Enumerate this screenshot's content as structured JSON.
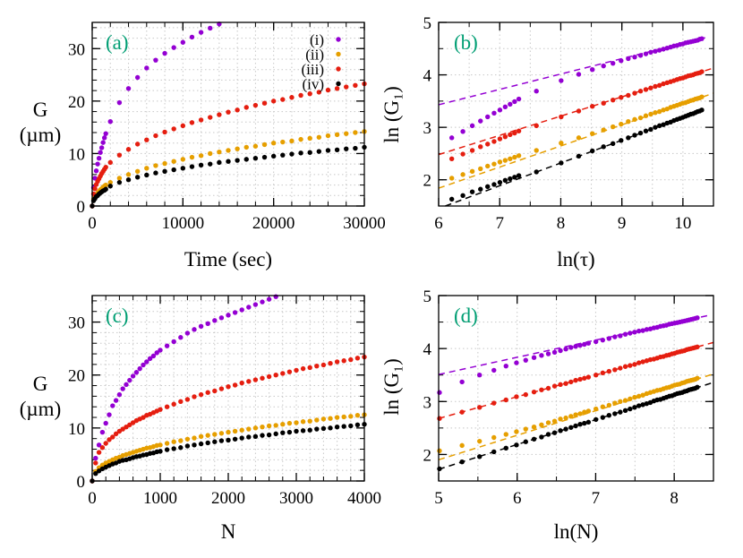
{
  "chart_data": [
    {
      "type": "scatter",
      "panel_label": "(a)",
      "xlabel": "Time (sec)",
      "ylabel": "G (µm)",
      "xlim": [
        0,
        30000
      ],
      "ylim": [
        0,
        35
      ],
      "xticks": [
        "0",
        "10000",
        "20000",
        "30000"
      ],
      "yticks": [
        "0",
        "10",
        "20",
        "30"
      ],
      "grid": true,
      "legend": {
        "position": "top-right"
      },
      "x": [
        0,
        150,
        300,
        450,
        600,
        750,
        900,
        1050,
        1200,
        1350,
        1500,
        2000,
        3000,
        4000,
        5000,
        6000,
        7000,
        8000,
        9000,
        10000,
        11000,
        12000,
        13000,
        14000,
        15000,
        16000,
        17000,
        18000,
        19000,
        20000,
        21000,
        22000,
        23000,
        24000,
        25000,
        26000,
        27000,
        28000,
        29000,
        30000
      ],
      "series": [
        {
          "name": "(i)",
          "color": "#9400d3",
          "values": [
            0,
            3.5,
            5.3,
            6.7,
            8.0,
            9.1,
            10.2,
            11.1,
            12.1,
            13.0,
            13.8,
            16.1,
            19.7,
            22.4,
            24.5,
            26.3,
            27.8,
            29.1,
            30.2,
            31.2,
            32.2,
            33.1,
            33.9,
            34.7
          ]
        },
        {
          "name": "(ii)",
          "color": "#e69f00",
          "values": [
            0,
            1.3,
            1.8,
            2.2,
            2.5,
            2.8,
            3.1,
            3.3,
            3.6,
            3.8,
            4.0,
            4.5,
            5.3,
            6.0,
            6.6,
            7.2,
            7.7,
            8.1,
            8.5,
            8.9,
            9.3,
            9.6,
            10.0,
            10.3,
            10.6,
            10.9,
            11.2,
            11.4,
            11.7,
            12.0,
            12.2,
            12.4,
            12.7,
            12.9,
            13.1,
            13.4,
            13.6,
            13.8,
            14.0,
            14.2
          ]
        },
        {
          "name": "(iii)",
          "color": "#e51e10",
          "values": [
            0,
            2.3,
            3.3,
            4.1,
            4.7,
            5.2,
            5.7,
            6.2,
            6.6,
            7.0,
            7.4,
            8.3,
            9.7,
            10.8,
            11.8,
            12.6,
            13.4,
            14.1,
            14.7,
            15.3,
            15.9,
            16.4,
            16.9,
            17.4,
            17.9,
            18.3,
            18.8,
            19.2,
            19.6,
            20.0,
            20.3,
            20.7,
            21.1,
            21.4,
            21.7,
            22.1,
            22.4,
            22.7,
            23.0,
            23.3
          ]
        },
        {
          "name": "(iv)",
          "color": "#000000",
          "values": [
            0,
            1.0,
            1.4,
            1.8,
            2.0,
            2.3,
            2.5,
            2.7,
            2.9,
            3.0,
            3.2,
            3.8,
            4.5,
            5.0,
            5.5,
            5.9,
            6.3,
            6.6,
            6.9,
            7.2,
            7.5,
            7.8,
            8.0,
            8.3,
            8.5,
            8.7,
            8.9,
            9.1,
            9.3,
            9.5,
            9.7,
            9.9,
            10.1,
            10.2,
            10.4,
            10.6,
            10.7,
            10.9,
            11.0,
            11.2
          ]
        }
      ]
    },
    {
      "type": "scatter",
      "panel_label": "(b)",
      "xlabel": "ln(τ)",
      "ylabel": "ln (G₁)",
      "xlim": [
        6,
        10.5
      ],
      "ylim": [
        1.5,
        5
      ],
      "xticks": [
        "6",
        "7",
        "8",
        "9",
        "10"
      ],
      "yticks": [
        "2",
        "3",
        "4",
        "5"
      ],
      "grid": true,
      "x": [
        6.215,
        6.397,
        6.551,
        6.685,
        6.802,
        6.908,
        7.003,
        7.09,
        7.17,
        7.244,
        7.313,
        7.601,
        8.006,
        8.294,
        8.517,
        8.7,
        8.854,
        8.987,
        9.105,
        9.21,
        9.306,
        9.393,
        9.473,
        9.547,
        9.616,
        9.68,
        9.741,
        9.798,
        9.852,
        9.903,
        9.952,
        9.999,
        10.043,
        10.086,
        10.127,
        10.166,
        10.204,
        10.24,
        10.275,
        10.309
      ],
      "series": [
        {
          "color": "#9400d3",
          "values": [
            2.8,
            2.92,
            3.03,
            3.12,
            3.2,
            3.27,
            3.33,
            3.39,
            3.44,
            3.49,
            3.54,
            3.69,
            3.89,
            4.01,
            4.1,
            4.17,
            4.22,
            4.27,
            4.31,
            4.34,
            4.37,
            4.4,
            4.43,
            4.45,
            4.47,
            4.49,
            4.51,
            4.53,
            4.55,
            4.56,
            4.58,
            4.59,
            4.61,
            4.62,
            4.63,
            4.64,
            4.65,
            4.66,
            4.68,
            4.69
          ],
          "fit_line": {
            "x": [
              6,
              10.37
            ],
            "y": [
              3.43,
              4.71
            ]
          }
        },
        {
          "color": "#e69f00",
          "values": [
            2.03,
            2.1,
            2.16,
            2.21,
            2.26,
            2.3,
            2.34,
            2.37,
            2.4,
            2.43,
            2.46,
            2.56,
            2.7,
            2.8,
            2.88,
            2.95,
            3.01,
            3.06,
            3.11,
            3.15,
            3.18,
            3.22,
            3.25,
            3.28,
            3.3,
            3.33,
            3.35,
            3.38,
            3.4,
            3.42,
            3.44,
            3.46,
            3.47,
            3.49,
            3.51,
            3.52,
            3.54,
            3.55,
            3.56,
            3.58
          ],
          "fit_line": {
            "x": [
              6,
              10.5
            ],
            "y": [
              1.84,
              3.65
            ]
          }
        },
        {
          "color": "#e51e10",
          "values": [
            2.4,
            2.49,
            2.56,
            2.63,
            2.68,
            2.73,
            2.78,
            2.82,
            2.86,
            2.89,
            2.93,
            3.03,
            3.2,
            3.31,
            3.4,
            3.46,
            3.52,
            3.57,
            3.61,
            3.65,
            3.69,
            3.72,
            3.75,
            3.78,
            3.8,
            3.83,
            3.85,
            3.87,
            3.89,
            3.91,
            3.93,
            3.94,
            3.96,
            3.98,
            3.99,
            4.0,
            4.02,
            4.03,
            4.04,
            4.06
          ],
          "fit_line": {
            "x": [
              6,
              10.5
            ],
            "y": [
              2.48,
              4.13
            ]
          }
        },
        {
          "color": "#000000",
          "values": [
            1.63,
            1.7,
            1.77,
            1.82,
            1.87,
            1.91,
            1.95,
            1.99,
            2.02,
            2.05,
            2.08,
            2.15,
            2.32,
            2.45,
            2.55,
            2.63,
            2.69,
            2.75,
            2.8,
            2.85,
            2.89,
            2.93,
            2.96,
            3.0,
            3.03,
            3.05,
            3.08,
            3.1,
            3.13,
            3.15,
            3.17,
            3.19,
            3.21,
            3.23,
            3.25,
            3.26,
            3.28,
            3.3,
            3.31,
            3.33
          ],
          "fit_line": {
            "x": [
              6.11,
              10.35
            ],
            "y": [
              1.5,
              3.34
            ]
          }
        }
      ]
    },
    {
      "type": "scatter",
      "panel_label": "(c)",
      "xlabel": "N",
      "ylabel": "G (µm)",
      "xlim": [
        0,
        4000
      ],
      "ylim": [
        0,
        35
      ],
      "xticks": [
        "0",
        "1000",
        "2000",
        "3000",
        "4000"
      ],
      "yticks": [
        "0",
        "10",
        "20",
        "30"
      ],
      "grid": true,
      "x": [
        0,
        50,
        100,
        150,
        200,
        250,
        300,
        350,
        400,
        450,
        500,
        550,
        600,
        650,
        700,
        750,
        800,
        850,
        900,
        950,
        1000,
        1100,
        1200,
        1300,
        1400,
        1500,
        1600,
        1700,
        1800,
        1900,
        2000,
        2100,
        2200,
        2300,
        2400,
        2500,
        2600,
        2700,
        2800,
        2900,
        3000,
        3100,
        3200,
        3300,
        3400,
        3500,
        3600,
        3700,
        3800,
        3900,
        4000
      ],
      "series": [
        {
          "color": "#9400d3",
          "values": [
            0,
            4.3,
            6.8,
            9.2,
            10.9,
            12.5,
            14.2,
            15.2,
            16.3,
            17.4,
            18.2,
            19.0,
            19.8,
            20.5,
            21.2,
            21.9,
            22.5,
            23.1,
            23.6,
            24.2,
            24.7,
            25.5,
            26.3,
            27.1,
            27.9,
            28.6,
            29.2,
            29.7,
            30.3,
            30.8,
            31.3,
            31.8,
            32.3,
            32.8,
            33.3,
            33.8,
            34.3,
            34.8
          ]
        },
        {
          "color": "#e69f00",
          "values": [
            0,
            1.8,
            2.5,
            3.0,
            3.4,
            3.7,
            4.0,
            4.3,
            4.5,
            4.8,
            5.0,
            5.2,
            5.4,
            5.6,
            5.8,
            6.0,
            6.2,
            6.3,
            6.5,
            6.7,
            6.8,
            7.1,
            7.4,
            7.6,
            7.9,
            8.1,
            8.4,
            8.6,
            8.8,
            9.0,
            9.2,
            9.4,
            9.6,
            9.8,
            10.0,
            10.2,
            10.4,
            10.5,
            10.7,
            10.9,
            11.0,
            11.2,
            11.3,
            11.5,
            11.7,
            11.8,
            12.0,
            12.1,
            12.2,
            12.4,
            12.5
          ]
        },
        {
          "color": "#e51e10",
          "values": [
            0,
            3.4,
            5.4,
            6.3,
            7.1,
            7.8,
            8.3,
            8.9,
            9.4,
            9.8,
            10.2,
            10.6,
            11.0,
            11.4,
            11.7,
            12.0,
            12.4,
            12.6,
            12.9,
            13.2,
            13.5,
            14.0,
            14.5,
            15.0,
            15.4,
            15.9,
            16.3,
            16.7,
            17.0,
            17.4,
            17.8,
            18.1,
            18.5,
            18.8,
            19.1,
            19.4,
            19.7,
            20.0,
            20.3,
            20.6,
            20.9,
            21.2,
            21.4,
            21.7,
            21.9,
            22.2,
            22.5,
            22.7,
            22.9,
            23.2,
            23.4
          ]
        },
        {
          "color": "#000000",
          "values": [
            0,
            1.4,
            1.9,
            2.3,
            2.6,
            2.9,
            3.2,
            3.4,
            3.7,
            3.9,
            4.0,
            4.2,
            4.4,
            4.6,
            4.7,
            4.9,
            5.0,
            5.2,
            5.3,
            5.5,
            5.6,
            5.9,
            6.1,
            6.3,
            6.6,
            6.8,
            7.0,
            7.2,
            7.4,
            7.6,
            7.7,
            7.9,
            8.1,
            8.3,
            8.4,
            8.6,
            8.7,
            8.9,
            9.1,
            9.2,
            9.4,
            9.5,
            9.6,
            9.8,
            9.9,
            10.0,
            10.2,
            10.3,
            10.4,
            10.6,
            10.7
          ]
        }
      ]
    },
    {
      "type": "scatter",
      "panel_label": "(d)",
      "xlabel": "ln(N)",
      "ylabel": "ln (G₁)",
      "xlim": [
        5,
        8.5
      ],
      "ylim": [
        1.5,
        5
      ],
      "xticks": [
        "5",
        "6",
        "7",
        "8"
      ],
      "yticks": [
        "2",
        "3",
        "4",
        "5"
      ],
      "grid": true,
      "x": [
        5.011,
        5.298,
        5.521,
        5.704,
        5.858,
        5.991,
        6.109,
        6.215,
        6.31,
        6.397,
        6.477,
        6.551,
        6.62,
        6.685,
        6.745,
        6.802,
        6.856,
        6.908,
        7.003,
        7.09,
        7.17,
        7.244,
        7.313,
        7.378,
        7.438,
        7.496,
        7.55,
        7.601,
        7.65,
        7.696,
        7.741,
        7.783,
        7.824,
        7.863,
        7.901,
        7.937,
        7.972,
        8.006,
        8.039,
        8.071,
        8.102,
        8.132,
        8.161,
        8.189,
        8.216,
        8.243,
        8.269,
        8.294
      ],
      "series": [
        {
          "color": "#9400d3",
          "values": [
            3.17,
            3.37,
            3.5,
            3.59,
            3.67,
            3.73,
            3.78,
            3.83,
            3.87,
            3.9,
            3.93,
            3.96,
            3.99,
            4.02,
            4.04,
            4.06,
            4.08,
            4.1,
            4.13,
            4.16,
            4.19,
            4.22,
            4.24,
            4.27,
            4.29,
            4.31,
            4.33,
            4.34,
            4.36,
            4.37,
            4.39,
            4.4,
            4.42,
            4.43,
            4.44,
            4.46,
            4.47,
            4.48,
            4.49,
            4.5,
            4.51,
            4.52,
            4.53,
            4.54,
            4.55,
            4.56,
            4.57,
            4.58
          ],
          "fit_line": {
            "x": [
              5,
              8.45
            ],
            "y": [
              3.51,
              4.63
            ]
          }
        },
        {
          "color": "#e69f00",
          "values": [
            2.07,
            2.17,
            2.25,
            2.32,
            2.38,
            2.43,
            2.48,
            2.52,
            2.56,
            2.6,
            2.63,
            2.67,
            2.69,
            2.72,
            2.75,
            2.77,
            2.8,
            2.82,
            2.86,
            2.9,
            2.93,
            2.97,
            3.0,
            3.02,
            3.05,
            3.08,
            3.1,
            3.12,
            3.15,
            3.17,
            3.19,
            3.21,
            3.22,
            3.24,
            3.26,
            3.27,
            3.29,
            3.31,
            3.32,
            3.33,
            3.35,
            3.36,
            3.38,
            3.39,
            3.4,
            3.41,
            3.42,
            3.44
          ],
          "fit_line": {
            "x": [
              5,
              8.5
            ],
            "y": [
              1.9,
              3.52
            ]
          }
        },
        {
          "color": "#e51e10",
          "values": [
            2.68,
            2.8,
            2.89,
            2.97,
            3.03,
            3.09,
            3.13,
            3.18,
            3.22,
            3.25,
            3.29,
            3.32,
            3.34,
            3.37,
            3.4,
            3.42,
            3.44,
            3.46,
            3.5,
            3.54,
            3.57,
            3.6,
            3.63,
            3.66,
            3.68,
            3.7,
            3.73,
            3.75,
            3.77,
            3.79,
            3.8,
            3.82,
            3.84,
            3.85,
            3.87,
            3.88,
            3.9,
            3.91,
            3.93,
            3.94,
            3.95,
            3.96,
            3.98,
            3.99,
            4.0,
            4.01,
            4.02,
            4.03
          ],
          "fit_line": {
            "x": [
              5,
              8.5
            ],
            "y": [
              2.68,
              4.115
            ]
          }
        },
        {
          "color": "#000000",
          "values": [
            1.73,
            1.86,
            1.96,
            2.05,
            2.12,
            2.18,
            2.24,
            2.29,
            2.33,
            2.38,
            2.41,
            2.45,
            2.48,
            2.51,
            2.54,
            2.57,
            2.59,
            2.61,
            2.66,
            2.7,
            2.74,
            2.77,
            2.8,
            2.83,
            2.86,
            2.89,
            2.92,
            2.94,
            2.96,
            2.98,
            3.01,
            3.03,
            3.04,
            3.06,
            3.08,
            3.1,
            3.11,
            3.13,
            3.15,
            3.16,
            3.17,
            3.19,
            3.2,
            3.22,
            3.23,
            3.24,
            3.25,
            3.27
          ],
          "fit_line": {
            "x": [
              5,
              8.5
            ],
            "y": [
              1.72,
              3.36
            ]
          }
        }
      ]
    }
  ],
  "colors": {
    "panel_label": "#009e73"
  }
}
